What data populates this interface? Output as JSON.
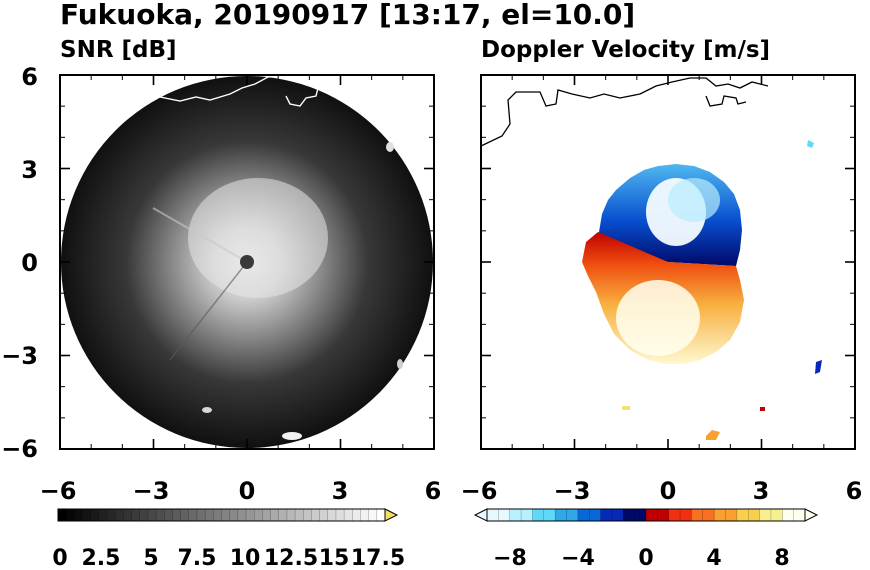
{
  "figure": {
    "title": "Fukuoka, 20190917 [13:17, el=10.0]"
  },
  "chart_data": [
    {
      "type": "heatmap",
      "title": "SNR [dB]",
      "x_ticks": [
        "−6",
        "−3",
        "0",
        "3",
        "6"
      ],
      "y_ticks": [
        "6",
        "3",
        "0",
        "−3",
        "−6"
      ],
      "xlim": [
        -6,
        6
      ],
      "ylim": [
        -6,
        6
      ],
      "colorbar": {
        "labels": [
          "0",
          "2.5",
          "5",
          "7.5",
          "10",
          "12.5",
          "15",
          "17.5"
        ],
        "range": [
          0,
          20
        ],
        "extend": "max",
        "colors": [
          "#000000",
          "#ffffff",
          "#f0e060"
        ]
      },
      "grid": false
    },
    {
      "type": "heatmap",
      "title": "Doppler Velocity [m/s]",
      "x_ticks": [
        "−6",
        "−3",
        "0",
        "3",
        "6"
      ],
      "xlim": [
        -6,
        6
      ],
      "ylim": [
        -6,
        6
      ],
      "colorbar": {
        "labels": [
          "−8",
          "−4",
          "0",
          "4",
          "8"
        ],
        "range": [
          -10,
          10
        ],
        "extend": "both",
        "colors": [
          "#e8f8ff",
          "#b8f0ff",
          "#60d8f8",
          "#30a8e8",
          "#0868d8",
          "#0828b8",
          "#000868",
          "#c00000",
          "#f03010",
          "#f87020",
          "#f8a030",
          "#f8d050",
          "#f8f090",
          "#fffff0"
        ]
      },
      "grid": false
    }
  ]
}
